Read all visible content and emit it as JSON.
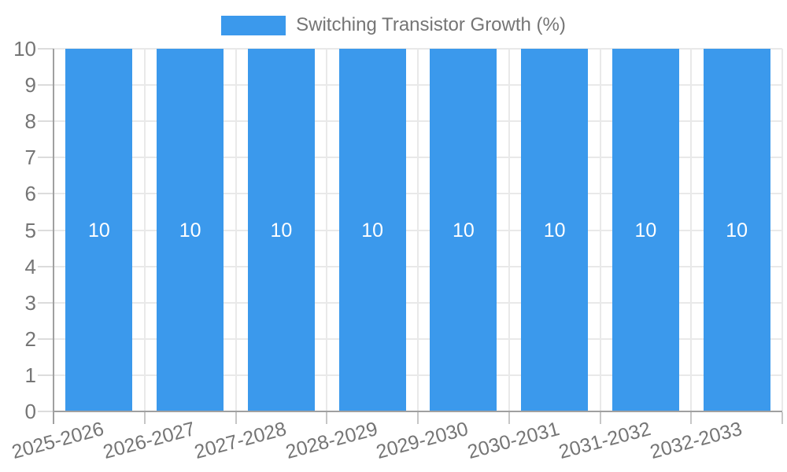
{
  "legend": {
    "label": "Switching Transistor Growth (%)"
  },
  "palette": {
    "bar": "#3B99EC",
    "axis_text": "#757575",
    "grid_line": "#e9e9e9",
    "axis_line": "#a0a0a0",
    "x_tick": "#c6c6c6",
    "y_tick": "#dcdcdc",
    "bar_value_text": "#ffffff",
    "background": "#ffffff"
  },
  "chart_data": {
    "type": "bar",
    "title": "",
    "categories": [
      "2025-2026",
      "2026-2027",
      "2027-2028",
      "2028-2029",
      "2029-2030",
      "2030-2031",
      "2031-2032",
      "2032-2033"
    ],
    "series": [
      {
        "name": "Switching Transistor Growth (%)",
        "values": [
          10,
          10,
          10,
          10,
          10,
          10,
          10,
          10
        ],
        "value_labels": [
          "10",
          "10",
          "10",
          "10",
          "10",
          "10",
          "10",
          "10"
        ]
      }
    ],
    "xlabel": "",
    "ylabel": "",
    "ylim": [
      0,
      10
    ],
    "yticks": [
      0,
      1,
      2,
      3,
      4,
      5,
      6,
      7,
      8,
      9,
      10
    ],
    "grid": true,
    "legend_position": "top",
    "x_label_rotation_deg": -15
  }
}
